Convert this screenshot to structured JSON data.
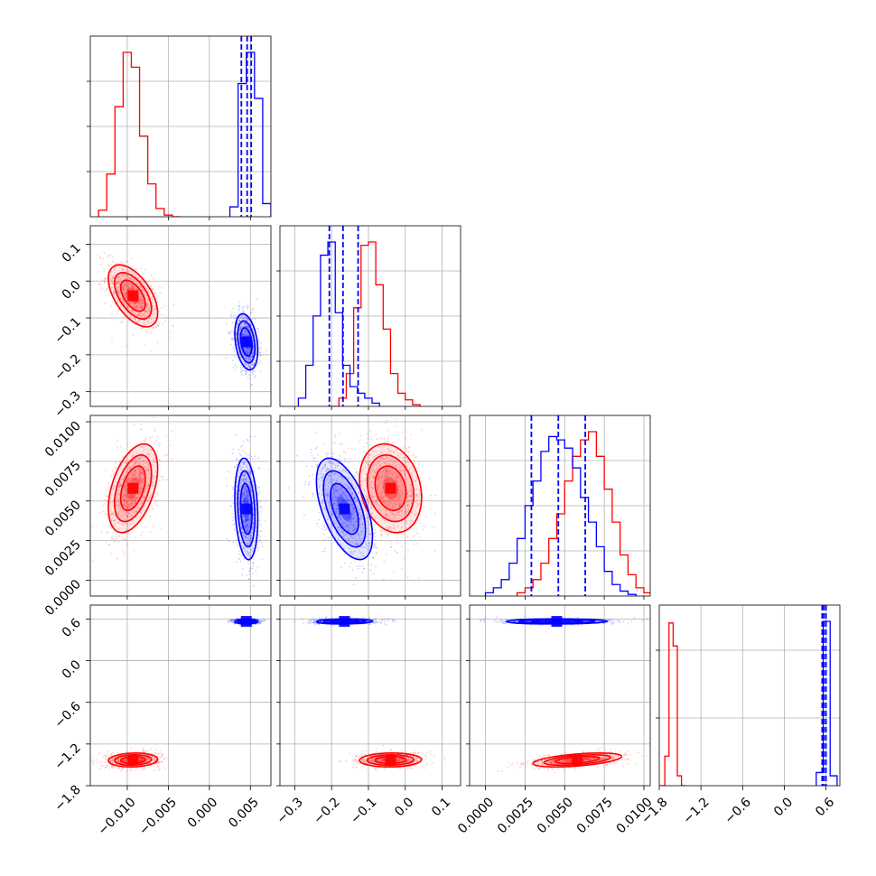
{
  "colors": {
    "red": "#ff0000",
    "blue": "#0000ff",
    "grid": "#b0b0b0",
    "frame": "#000000"
  },
  "chart_data": {
    "type": "corner",
    "grid": true,
    "parameters": [
      {
        "range": [
          -0.0145,
          0.0075
        ],
        "ticks": [
          -0.01,
          -0.005,
          0.0,
          0.005
        ],
        "tick_labels": [
          "−0.010",
          "−0.005",
          "0.000",
          "0.005"
        ]
      },
      {
        "range": [
          -0.34,
          0.15
        ],
        "ticks": [
          -0.3,
          -0.2,
          -0.1,
          0.0,
          0.1
        ],
        "tick_labels": [
          "−0.3",
          "−0.2",
          "−0.1",
          "0.0",
          "0.1"
        ]
      },
      {
        "range": [
          -0.001,
          0.0104
        ],
        "ticks": [
          0.0,
          0.0025,
          0.005,
          0.0075,
          0.01
        ],
        "tick_labels": [
          "0.0000",
          "0.0025",
          "0.0050",
          "0.0075",
          "0.0100"
        ]
      },
      {
        "range": [
          -1.8,
          0.8
        ],
        "ticks": [
          -1.8,
          -1.2,
          -0.6,
          0.0,
          0.6
        ],
        "tick_labels": [
          "−1.8",
          "−1.2",
          "−0.6",
          "0.0",
          "0.6"
        ]
      }
    ],
    "series": [
      {
        "color": "#ff0000",
        "means": [
          -0.0093,
          -0.04,
          0.0058,
          -1.43
        ],
        "sds": [
          0.0015,
          0.042,
          0.0014,
          0.05
        ],
        "correlations": [
          [
            1,
            -0.55,
            0.45,
            0.1
          ],
          [
            -0.55,
            1,
            -0.2,
            0.05
          ],
          [
            0.45,
            -0.2,
            1,
            0.5
          ],
          [
            0.1,
            0.05,
            0.5,
            1
          ]
        ],
        "histograms": [
          {
            "edges_start": -0.0135,
            "bin_width": 0.001,
            "counts": [
              0.04,
              0.26,
              0.67,
              1.0,
              0.91,
              0.49,
              0.2,
              0.05,
              0.01,
              0.0
            ]
          },
          {
            "edges_start": -0.2,
            "bin_width": 0.02,
            "counts": [
              0.0,
              0.05,
              0.2,
              0.6,
              0.98,
              1.0,
              0.74,
              0.47,
              0.2,
              0.08,
              0.04,
              0.01
            ]
          },
          {
            "edges_start": 0.002,
            "bin_width": 0.0005,
            "counts": [
              0.02,
              0.05,
              0.1,
              0.2,
              0.35,
              0.5,
              0.7,
              0.85,
              0.95,
              1.0,
              0.85,
              0.65,
              0.45,
              0.25,
              0.13,
              0.05,
              0.02,
              0.0
            ]
          },
          {
            "edges_start": -1.78,
            "bin_width": 0.06,
            "counts": [
              0.0,
              0.18,
              0.99,
              0.85,
              0.06,
              0.0
            ]
          }
        ]
      },
      {
        "color": "#0000ff",
        "means": [
          0.0045,
          -0.165,
          0.0045,
          0.565
        ],
        "sds": [
          0.0007,
          0.038,
          0.0016,
          0.018
        ],
        "correlations": [
          [
            1,
            -0.3,
            -0.2,
            0.0
          ],
          [
            -0.3,
            1,
            -0.55,
            0.1
          ],
          [
            -0.2,
            -0.55,
            1,
            0.05
          ],
          [
            0.0,
            0.1,
            0.05,
            1
          ]
        ],
        "quantiles": [
          [
            0.0039,
            0.0046,
            0.0051
          ],
          [
            -0.206,
            -0.169,
            -0.128
          ],
          [
            0.0029,
            0.0046,
            0.0063
          ],
          [
            0.545,
            0.57,
            0.6
          ]
        ],
        "histograms": [
          {
            "edges_start": 0.0025,
            "bin_width": 0.001,
            "counts": [
              0.06,
              0.81,
              1.0,
              0.72,
              0.08
            ]
          },
          {
            "edges_start": -0.29,
            "bin_width": 0.02,
            "counts": [
              0.05,
              0.25,
              0.55,
              0.92,
              1.0,
              0.57,
              0.25,
              0.12,
              0.08,
              0.05,
              0.02
            ]
          },
          {
            "edges_start": 0.0,
            "bin_width": 0.0005,
            "counts": [
              0.02,
              0.05,
              0.1,
              0.2,
              0.35,
              0.55,
              0.7,
              0.88,
              0.97,
              0.95,
              0.9,
              0.78,
              0.6,
              0.45,
              0.3,
              0.15,
              0.07,
              0.03,
              0.01
            ]
          },
          {
            "edges_start": 0.46,
            "bin_width": 0.1,
            "counts": [
              0.08,
              1.0,
              0.06
            ]
          }
        ]
      }
    ]
  }
}
